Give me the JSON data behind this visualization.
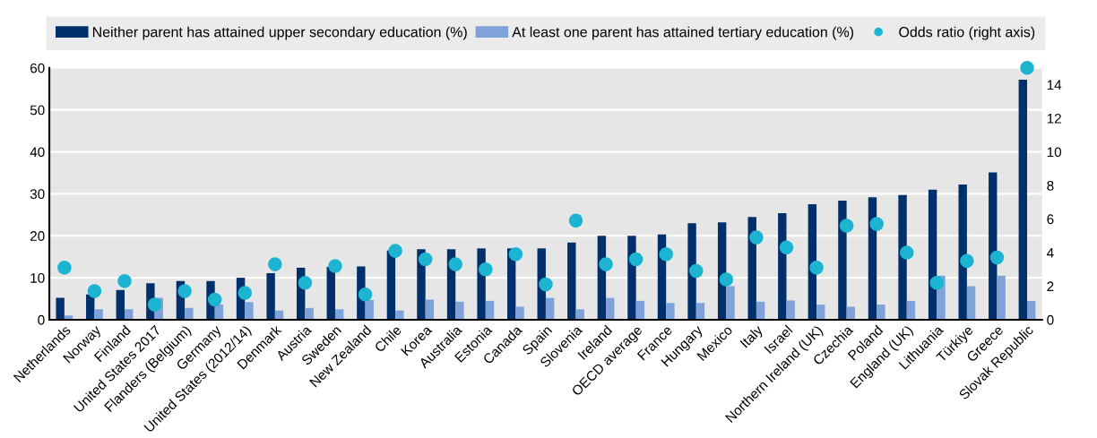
{
  "chart_data": {
    "type": "bar",
    "categories": [
      "Netherlands",
      "Norway",
      "Finland",
      "United States 2017",
      "Flanders (Belgium)",
      "Germany",
      "United States (2012/14)",
      "Denmark",
      "Austria",
      "Sweden",
      "New Zealand",
      "Chile",
      "Korea",
      "Australia",
      "Estonia",
      "Canada",
      "Spain",
      "Slovenia",
      "Ireland",
      "OECD average",
      "France",
      "Hungary",
      "Mexico",
      "Italy",
      "Israel",
      "Northern Ireland (UK)",
      "Czechia",
      "Poland",
      "England (UK)",
      "Lithuania",
      "Türkiye",
      "Greece",
      "Slovak Republic"
    ],
    "series": [
      {
        "name": "Neither parent has attained upper secondary education (%)",
        "color": "#00306b",
        "values": [
          5.2,
          6,
          7.1,
          8.7,
          9.2,
          9.2,
          10,
          11.1,
          12.4,
          12.6,
          12.7,
          16.5,
          16.8,
          16.8,
          17,
          17,
          17,
          18.4,
          20,
          20,
          20.3,
          23,
          23.2,
          24.5,
          25.4,
          27.5,
          28.4,
          29.2,
          29.7,
          31,
          32.2,
          35.1,
          57.2
        ]
      },
      {
        "name": "At least one parent has attained tertiary education (%)",
        "color": "#7fa3d8",
        "values": [
          1,
          2.5,
          2.5,
          5.2,
          2.8,
          3.6,
          4.2,
          2.2,
          2.8,
          2.5,
          4.7,
          2.2,
          4.8,
          4.3,
          4.5,
          3.1,
          5.2,
          2.5,
          5.2,
          4.5,
          4,
          4,
          8,
          4.3,
          4.6,
          3.6,
          3.1,
          3.6,
          4.5,
          10.5,
          8,
          10.5,
          4.5
        ]
      },
      {
        "name": "Odds ratio (right axis)",
        "color": "#1cb4d0",
        "type": "scatter",
        "axis": "y2",
        "values": [
          3.1,
          1.7,
          2.3,
          0.9,
          1.7,
          1.2,
          1.6,
          3.3,
          2.2,
          3.2,
          1.5,
          4.1,
          3.6,
          3.3,
          3.0,
          3.9,
          2.1,
          5.9,
          3.3,
          3.6,
          3.9,
          2.9,
          2.4,
          4.9,
          4.3,
          3.1,
          5.6,
          5.7,
          4.0,
          2.2,
          3.5,
          3.7,
          15.0
        ]
      }
    ],
    "ylim": [
      0,
      60
    ],
    "yticks": [
      0,
      10,
      20,
      30,
      40,
      50,
      60
    ],
    "y2lim": [
      0,
      15
    ],
    "y2ticks": [
      0,
      2,
      4,
      6,
      8,
      10,
      12,
      14
    ],
    "grid": true,
    "legend": "top",
    "marker": "circle"
  }
}
